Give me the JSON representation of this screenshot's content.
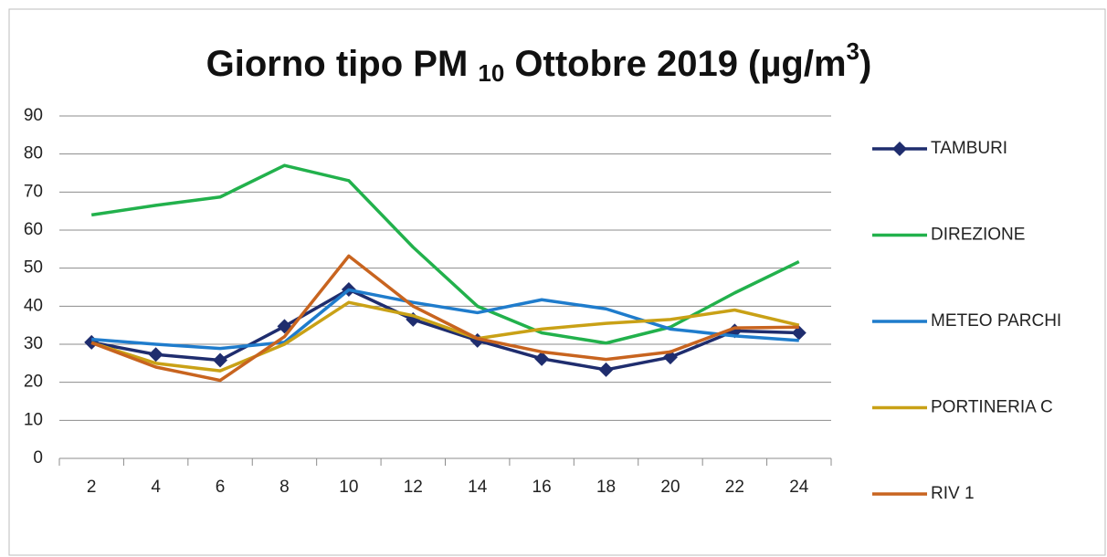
{
  "chart_data": {
    "type": "line",
    "title": [
      "Giorno tipo PM ",
      "10",
      " Ottobre 2019 (µg/m",
      "3",
      ")"
    ],
    "categories": [
      2,
      4,
      6,
      8,
      10,
      12,
      14,
      16,
      18,
      20,
      22,
      24
    ],
    "series": [
      {
        "name": "TAMBURI",
        "color": "#1f2d6e",
        "marker": "diamond",
        "values": [
          30.5,
          27.3,
          25.8,
          34.7,
          44.4,
          36.5,
          31,
          26.2,
          23.3,
          26.6,
          33.5,
          33
        ]
      },
      {
        "name": "DIREZIONE",
        "color": "#22b14c",
        "values": [
          64,
          66.5,
          68.7,
          77,
          73,
          55.5,
          40,
          33,
          30.3,
          34.5,
          43.5,
          51.7
        ]
      },
      {
        "name": "METEO PARCHI",
        "color": "#1f7ccc",
        "values": [
          31.3,
          30,
          28.9,
          30.5,
          44.3,
          41,
          38.3,
          41.7,
          39.3,
          34,
          32.2,
          31
        ]
      },
      {
        "name": "PORTINERIA C",
        "color": "#c9a116",
        "values": [
          30.4,
          25,
          23,
          30,
          41,
          37.5,
          31.5,
          34,
          35.5,
          36.5,
          39,
          35
        ]
      },
      {
        "name": "RIV 1",
        "color": "#c8641f",
        "values": [
          30.4,
          24,
          20.5,
          32,
          53.2,
          40,
          31.5,
          28,
          26,
          28,
          34.3,
          34.5
        ]
      }
    ],
    "ylim": [
      0,
      90
    ],
    "yticks": [
      0,
      10,
      20,
      30,
      40,
      50,
      60,
      70,
      80,
      90
    ],
    "grid": true,
    "legend": "right"
  }
}
